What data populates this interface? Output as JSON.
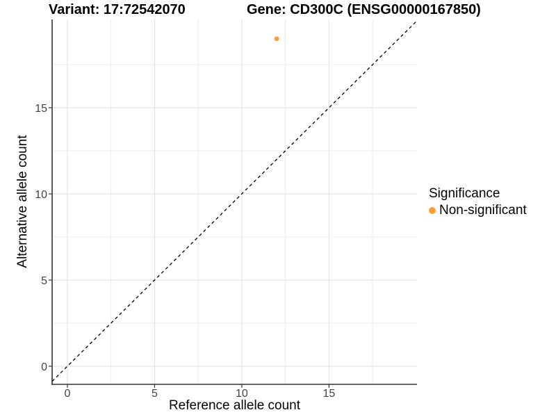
{
  "chart_data": {
    "type": "scatter",
    "title_left": "Variant: 17:72542070",
    "title_right": "Gene: CD300C (ENSG00000167850)",
    "xlabel": "Reference allele count",
    "ylabel": "Alternative allele count",
    "xlim": [
      -0.875,
      20.045
    ],
    "ylim": [
      -1.05,
      20.12
    ],
    "x_ticks": [
      0,
      5,
      10,
      15
    ],
    "y_ticks": [
      0,
      5,
      10,
      15
    ],
    "x_minor_gridlines": [
      2.5,
      7.5,
      12.5,
      17.5
    ],
    "y_minor_gridlines": [
      2.5,
      7.5,
      12.5,
      17.5
    ],
    "grid": true,
    "points": [
      {
        "x": 12,
        "y": 19,
        "series": "Non-significant"
      }
    ],
    "reference_line": {
      "type": "abline",
      "slope": 1,
      "intercept": 0,
      "style": "dashed",
      "color": "#000000"
    },
    "series_colors": {
      "Non-significant": "#FAA032"
    },
    "legend": {
      "title": "Significance",
      "position": "right",
      "entries": [
        {
          "label": "Non-significant",
          "color": "#FAA032"
        }
      ]
    },
    "style": {
      "axis_color": "#333333",
      "tick_color": "#333333",
      "tick_label_color": "#424242",
      "major_grid_color": "#E4E4E4",
      "minor_grid_color": "#ECECEC",
      "background": "#FFFFFF"
    }
  }
}
